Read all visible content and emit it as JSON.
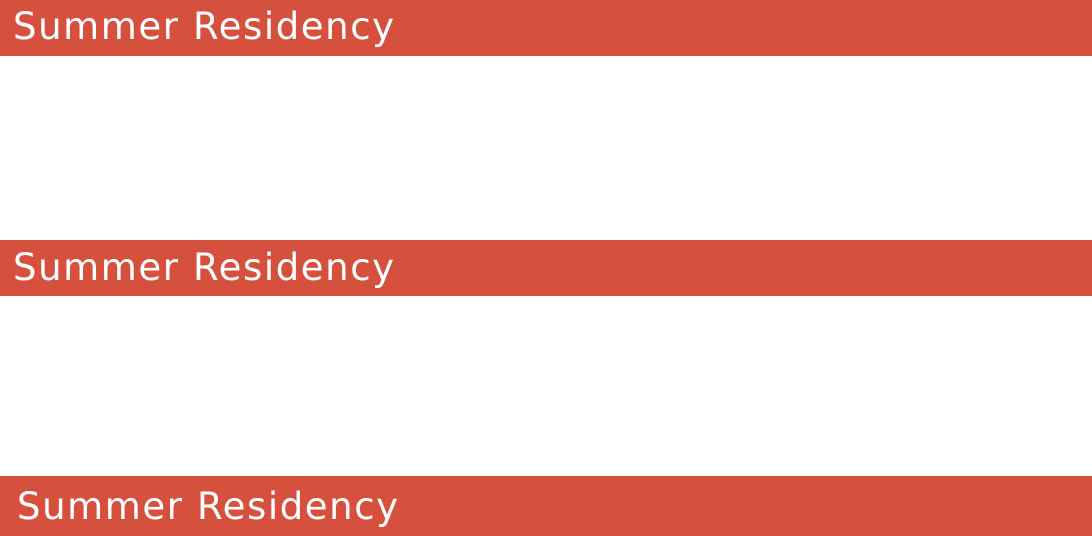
{
  "theme": {
    "banner_color": "#d6513d",
    "text_color": "#ffffff"
  },
  "banners": [
    {
      "title": "Summer Residency"
    },
    {
      "title": "Summer Residency"
    },
    {
      "title": "Summer Residency"
    }
  ]
}
